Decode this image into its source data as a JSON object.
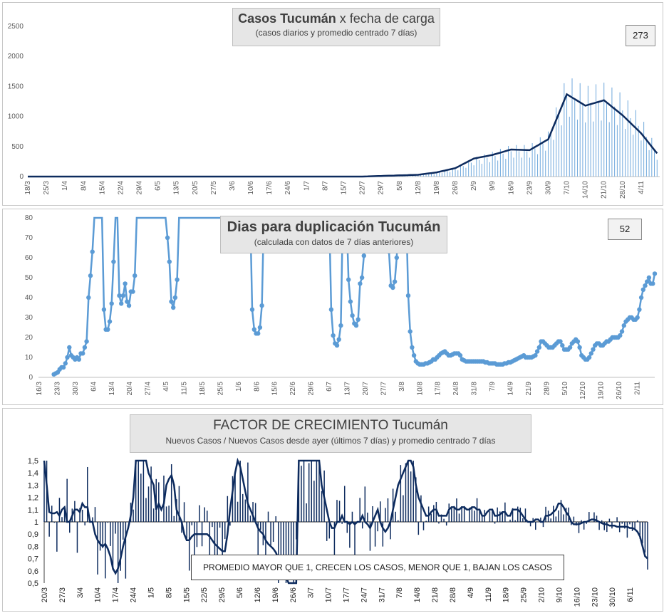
{
  "panel1": {
    "title_bold": "Casos Tucumán",
    "title_rest": " x fecha de carga",
    "subtitle": "(casos diarios y promedio  centrado 7 días)",
    "value_badge": "273",
    "y_ticks": [
      "0",
      "500",
      "1000",
      "1500",
      "2000",
      "2500"
    ],
    "x_ticks": [
      "18/3",
      "25/3",
      "1/4",
      "8/4",
      "15/4",
      "22/4",
      "29/4",
      "6/5",
      "13/5",
      "20/5",
      "27/5",
      "3/6",
      "10/6",
      "17/6",
      "24/6",
      "1/7",
      "8/7",
      "15/7",
      "22/7",
      "29/7",
      "5/8",
      "12/8",
      "19/8",
      "26/8",
      "2/9",
      "9/9",
      "16/9",
      "23/9",
      "30/9",
      "7/10",
      "14/10",
      "21/10",
      "28/10",
      "4/11"
    ]
  },
  "panel2": {
    "title": "Dias para duplicación Tucumán",
    "subtitle": "(calculada con datos de 7 días anteriores)",
    "value_badge": "52",
    "y_ticks": [
      "0",
      "10",
      "20",
      "30",
      "40",
      "50",
      "60",
      "70",
      "80"
    ],
    "x_ticks": [
      "16/3",
      "23/3",
      "30/3",
      "6/4",
      "13/4",
      "20/4",
      "27/4",
      "4/5",
      "11/5",
      "18/5",
      "25/5",
      "1/6",
      "8/6",
      "15/6",
      "22/6",
      "29/6",
      "6/7",
      "13/7",
      "20/7",
      "27/7",
      "3/8",
      "10/8",
      "17/8",
      "24/8",
      "31/8",
      "7/9",
      "14/9",
      "21/9",
      "28/9",
      "5/10",
      "12/10",
      "19/10",
      "26/10",
      "2/11"
    ]
  },
  "panel3": {
    "title": "FACTOR DE CRECIMIENTO Tucumán",
    "subtitle": "Nuevos Casos  / Nuevos Casos desde ayer (últimos 7 días) y promedio  centrado 7 días",
    "note": "PROMEDIO MAYOR QUE 1, CRECEN LOS CASOS, MENOR QUE 1, BAJAN LOS CASOS",
    "y_ticks": [
      "0,5",
      "0,6",
      "0,7",
      "0,8",
      "0,9",
      "1",
      "1,1",
      "1,2",
      "1,3",
      "1,4",
      "1,5"
    ],
    "x_ticks": [
      "20/3",
      "27/3",
      "3/4",
      "10/4",
      "17/4",
      "24/4",
      "1/5",
      "8/5",
      "15/5",
      "22/5",
      "29/5",
      "5/6",
      "12/6",
      "19/6",
      "26/6",
      "3/7",
      "10/7",
      "17/7",
      "24/7",
      "31/7",
      "7/8",
      "14/8",
      "21/8",
      "28/8",
      "4/9",
      "11/9",
      "18/9",
      "25/9",
      "2/10",
      "9/10",
      "16/10",
      "23/10",
      "30/10",
      "6/11"
    ]
  },
  "colors": {
    "bars": "#6fa8dc",
    "avg_line": "#0d2b5e",
    "dup_line": "#5b9bd5",
    "factor": "#0d2b5e"
  },
  "chart_data": [
    {
      "type": "bar",
      "title": "Casos Tucumán x fecha de carga",
      "subtitle": "(casos diarios y promedio  centrado 7 días)",
      "ylim": [
        0,
        2500
      ],
      "x_start": "18/3",
      "series": [
        {
          "kind": "bar",
          "weekly_values": [
            0,
            0,
            0,
            0,
            0,
            0,
            0,
            0,
            0,
            0,
            0,
            0,
            0,
            0,
            0,
            0,
            0,
            0,
            0,
            5,
            15,
            25,
            60,
            120,
            250,
            330,
            420,
            420,
            600,
            1350,
            1200,
            1250,
            1100,
            800,
            300
          ]
        },
        {
          "kind": "line",
          "weekly_values": [
            0,
            0,
            0,
            0,
            0,
            0,
            0,
            0,
            0,
            0,
            0,
            0,
            0,
            0,
            0,
            0,
            0,
            0,
            0,
            10,
            20,
            30,
            70,
            140,
            300,
            360,
            450,
            440,
            620,
            1370,
            1180,
            1270,
            1020,
            720,
            330
          ]
        }
      ]
    },
    {
      "type": "line",
      "title": "Dias para duplicación Tucumán",
      "subtitle": "(calculada con datos de 7 días anteriores)",
      "ylim": [
        0,
        80
      ],
      "x_start": "16/3",
      "values": [
        null,
        null,
        null,
        null,
        null,
        null,
        null,
        null,
        1.5,
        2,
        2.5,
        4,
        5,
        5,
        7,
        10,
        15,
        11,
        10,
        9,
        10,
        9,
        12,
        12,
        15,
        18,
        40,
        51,
        63,
        80,
        80,
        80,
        80,
        80,
        34,
        24,
        24,
        28,
        37,
        58,
        80,
        80,
        41,
        37,
        41,
        47,
        38,
        36,
        43,
        43,
        51,
        80,
        80,
        80,
        80,
        80,
        80,
        80,
        80,
        80,
        80,
        80,
        80,
        80,
        80,
        80,
        80,
        70,
        58,
        38,
        35,
        40,
        49,
        80,
        80,
        80,
        80,
        80,
        80,
        80,
        80,
        80,
        80,
        80,
        80,
        80,
        80,
        80,
        80,
        80,
        80,
        80,
        80,
        80,
        80,
        80,
        80,
        80,
        80,
        80,
        80,
        80,
        80,
        80,
        80,
        80,
        80,
        80,
        80,
        80,
        80,
        34,
        24,
        22,
        22,
        25,
        36,
        80,
        80,
        80,
        80,
        80,
        80,
        80,
        80,
        80,
        80,
        80,
        80,
        80,
        80,
        80,
        80,
        80,
        80,
        80,
        80,
        80,
        80,
        80,
        80,
        80,
        80,
        80,
        80,
        80,
        80,
        80,
        80,
        80,
        80,
        80,
        34,
        21,
        17,
        16,
        19,
        26,
        80,
        80,
        80,
        49,
        38,
        31,
        27,
        26,
        29,
        47,
        50,
        61,
        80,
        80,
        80,
        80,
        80,
        80,
        80,
        80,
        80,
        80,
        80,
        80,
        63,
        46,
        45,
        48,
        60,
        80,
        80,
        80,
        80,
        80,
        41,
        23,
        15,
        11,
        8,
        7,
        6.5,
        6.5,
        6.5,
        7,
        7,
        7.5,
        8,
        9,
        9,
        10,
        11,
        12,
        12.5,
        13,
        12,
        11,
        11,
        11.5,
        12,
        12,
        12,
        11,
        9,
        8.5,
        8,
        8,
        8,
        8,
        8,
        8,
        8,
        8,
        8,
        8,
        7.5,
        7.5,
        7,
        7,
        7,
        7,
        6.5,
        6.5,
        6.5,
        6.5,
        7,
        7,
        7.5,
        7.5,
        8,
        8.5,
        9,
        9.5,
        10,
        10.5,
        11,
        10,
        10,
        10,
        10,
        10.5,
        11,
        13,
        15,
        18,
        18,
        17,
        16,
        15,
        15,
        15,
        16,
        17,
        18,
        18,
        16,
        14,
        14,
        14,
        15,
        17,
        18,
        19,
        18,
        15,
        11,
        10,
        9,
        9,
        10,
        12,
        14,
        16,
        17,
        17,
        16,
        16,
        17,
        18,
        18,
        19,
        20,
        20,
        20,
        20,
        21,
        23,
        26,
        28,
        29,
        30,
        30,
        29,
        29,
        30,
        34,
        40,
        44,
        46,
        48,
        50,
        47,
        47,
        52
      ],
      "points": [
        [
          0,
          null
        ]
      ]
    },
    {
      "type": "line",
      "title": "FACTOR DE CRECIMIENTO Tucumán",
      "subtitle": "Nuevos Casos  / Nuevos Casos desde ayer (últimos 7 días) y promedio  centrado 7 días",
      "ylim": [
        0.5,
        1.5
      ],
      "x_start": "20/3",
      "series": [
        {
          "name": "promedio centrado 7 días",
          "values": [
            1.5,
            1.3,
            1.08,
            1.07,
            1.07,
            1.08,
            1.05,
            1.1,
            1.12,
            1.0,
            1.0,
            1.05,
            1.1,
            1.1,
            1.08,
            1.15,
            1.12,
            1.12,
            1.0,
            1.0,
            0.9,
            0.85,
            0.82,
            0.8,
            0.82,
            0.78,
            0.72,
            0.62,
            0.58,
            0.62,
            0.7,
            0.8,
            0.88,
            0.95,
            1.05,
            1.2,
            1.5,
            1.5,
            1.5,
            1.5,
            1.5,
            1.4,
            1.35,
            1.3,
            1.1,
            1.15,
            1.1,
            1.15,
            1.3,
            1.35,
            1.38,
            1.3,
            1.1,
            1.05,
            1.0,
            0.9,
            0.85,
            0.85,
            0.88,
            0.9,
            0.9,
            0.9,
            0.9,
            0.9,
            0.9,
            0.88,
            0.85,
            0.82,
            0.8,
            0.78,
            0.76,
            0.76,
            0.9,
            1.1,
            1.25,
            1.4,
            1.5,
            1.45,
            1.35,
            1.25,
            1.15,
            1.1,
            1.05,
            1.0,
            0.95,
            0.92,
            0.9,
            0.85,
            0.82,
            0.8,
            0.78,
            0.75,
            0.7,
            0.65,
            0.6,
            0.55,
            0.5,
            0.5,
            0.5,
            0.5,
            1.5,
            1.5,
            1.5,
            1.5,
            1.5,
            1.5,
            1.5,
            1.5,
            1.5,
            1.3,
            1.2,
            1.1,
            1.0,
            0.95,
            0.95,
            1.0,
            1.0,
            1.05,
            1.0,
            1.0,
            0.98,
            1.0,
            0.98,
            1.0,
            1.0,
            1.05,
            1.0,
            0.98,
            0.95,
            1.0,
            1.05,
            1.1,
            1.0,
            0.95,
            0.92,
            0.95,
            1.0,
            1.1,
            1.2,
            1.3,
            1.35,
            1.4,
            1.45,
            1.5,
            1.5,
            1.45,
            1.3,
            1.2,
            1.15,
            1.1,
            1.05,
            1.05,
            1.08,
            1.1,
            1.1,
            1.05,
            1.05,
            1.05,
            1.05,
            1.1,
            1.12,
            1.12,
            1.1,
            1.1,
            1.12,
            1.12,
            1.1,
            1.1,
            1.12,
            1.12,
            1.1,
            1.1,
            1.05,
            1.05,
            1.08,
            1.1,
            1.1,
            1.05,
            1.05,
            1.06,
            1.08,
            1.08,
            1.05,
            1.05,
            1.1,
            1.1,
            1.1,
            1.08,
            1.05,
            1.02,
            1.0,
            1.0,
            1.0,
            1.02,
            1.02,
            1.0,
            1.0,
            1.05,
            1.05,
            1.06,
            1.08,
            1.1,
            1.15,
            1.15,
            1.12,
            1.08,
            1.05,
            1.0,
            0.98,
            0.98,
            0.98,
            0.99,
            1.0,
            1.0,
            1.01,
            1.02,
            1.02,
            1.01,
            1.0,
            0.99,
            0.98,
            0.98,
            0.97,
            0.97,
            0.97,
            0.96,
            0.96,
            0.96,
            0.96,
            0.96,
            0.95,
            0.95,
            0.94,
            0.92,
            0.88,
            0.8,
            0.72,
            0.7
          ]
        }
      ]
    }
  ]
}
